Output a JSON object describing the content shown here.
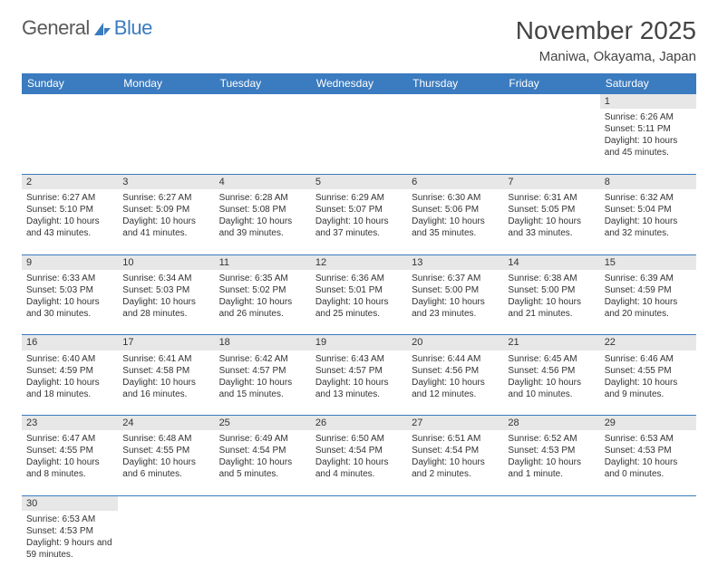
{
  "brand": {
    "part1": "General",
    "part2": "Blue",
    "logo_color": "#3b7bbf"
  },
  "title": "November 2025",
  "location": "Maniwa, Okayama, Japan",
  "colors": {
    "header_bg": "#3b7bbf",
    "header_text": "#ffffff",
    "daynum_bg": "#e7e7e7",
    "border": "#3b7bbf",
    "text": "#333333"
  },
  "weekdays": [
    "Sunday",
    "Monday",
    "Tuesday",
    "Wednesday",
    "Thursday",
    "Friday",
    "Saturday"
  ],
  "weeks": [
    [
      null,
      null,
      null,
      null,
      null,
      null,
      {
        "n": "1",
        "sr": "6:26 AM",
        "ss": "5:11 PM",
        "dl": "10 hours and 45 minutes."
      }
    ],
    [
      {
        "n": "2",
        "sr": "6:27 AM",
        "ss": "5:10 PM",
        "dl": "10 hours and 43 minutes."
      },
      {
        "n": "3",
        "sr": "6:27 AM",
        "ss": "5:09 PM",
        "dl": "10 hours and 41 minutes."
      },
      {
        "n": "4",
        "sr": "6:28 AM",
        "ss": "5:08 PM",
        "dl": "10 hours and 39 minutes."
      },
      {
        "n": "5",
        "sr": "6:29 AM",
        "ss": "5:07 PM",
        "dl": "10 hours and 37 minutes."
      },
      {
        "n": "6",
        "sr": "6:30 AM",
        "ss": "5:06 PM",
        "dl": "10 hours and 35 minutes."
      },
      {
        "n": "7",
        "sr": "6:31 AM",
        "ss": "5:05 PM",
        "dl": "10 hours and 33 minutes."
      },
      {
        "n": "8",
        "sr": "6:32 AM",
        "ss": "5:04 PM",
        "dl": "10 hours and 32 minutes."
      }
    ],
    [
      {
        "n": "9",
        "sr": "6:33 AM",
        "ss": "5:03 PM",
        "dl": "10 hours and 30 minutes."
      },
      {
        "n": "10",
        "sr": "6:34 AM",
        "ss": "5:03 PM",
        "dl": "10 hours and 28 minutes."
      },
      {
        "n": "11",
        "sr": "6:35 AM",
        "ss": "5:02 PM",
        "dl": "10 hours and 26 minutes."
      },
      {
        "n": "12",
        "sr": "6:36 AM",
        "ss": "5:01 PM",
        "dl": "10 hours and 25 minutes."
      },
      {
        "n": "13",
        "sr": "6:37 AM",
        "ss": "5:00 PM",
        "dl": "10 hours and 23 minutes."
      },
      {
        "n": "14",
        "sr": "6:38 AM",
        "ss": "5:00 PM",
        "dl": "10 hours and 21 minutes."
      },
      {
        "n": "15",
        "sr": "6:39 AM",
        "ss": "4:59 PM",
        "dl": "10 hours and 20 minutes."
      }
    ],
    [
      {
        "n": "16",
        "sr": "6:40 AM",
        "ss": "4:59 PM",
        "dl": "10 hours and 18 minutes."
      },
      {
        "n": "17",
        "sr": "6:41 AM",
        "ss": "4:58 PM",
        "dl": "10 hours and 16 minutes."
      },
      {
        "n": "18",
        "sr": "6:42 AM",
        "ss": "4:57 PM",
        "dl": "10 hours and 15 minutes."
      },
      {
        "n": "19",
        "sr": "6:43 AM",
        "ss": "4:57 PM",
        "dl": "10 hours and 13 minutes."
      },
      {
        "n": "20",
        "sr": "6:44 AM",
        "ss": "4:56 PM",
        "dl": "10 hours and 12 minutes."
      },
      {
        "n": "21",
        "sr": "6:45 AM",
        "ss": "4:56 PM",
        "dl": "10 hours and 10 minutes."
      },
      {
        "n": "22",
        "sr": "6:46 AM",
        "ss": "4:55 PM",
        "dl": "10 hours and 9 minutes."
      }
    ],
    [
      {
        "n": "23",
        "sr": "6:47 AM",
        "ss": "4:55 PM",
        "dl": "10 hours and 8 minutes."
      },
      {
        "n": "24",
        "sr": "6:48 AM",
        "ss": "4:55 PM",
        "dl": "10 hours and 6 minutes."
      },
      {
        "n": "25",
        "sr": "6:49 AM",
        "ss": "4:54 PM",
        "dl": "10 hours and 5 minutes."
      },
      {
        "n": "26",
        "sr": "6:50 AM",
        "ss": "4:54 PM",
        "dl": "10 hours and 4 minutes."
      },
      {
        "n": "27",
        "sr": "6:51 AM",
        "ss": "4:54 PM",
        "dl": "10 hours and 2 minutes."
      },
      {
        "n": "28",
        "sr": "6:52 AM",
        "ss": "4:53 PM",
        "dl": "10 hours and 1 minute."
      },
      {
        "n": "29",
        "sr": "6:53 AM",
        "ss": "4:53 PM",
        "dl": "10 hours and 0 minutes."
      }
    ],
    [
      {
        "n": "30",
        "sr": "6:53 AM",
        "ss": "4:53 PM",
        "dl": "9 hours and 59 minutes."
      },
      null,
      null,
      null,
      null,
      null,
      null
    ]
  ],
  "labels": {
    "sunrise": "Sunrise:",
    "sunset": "Sunset:",
    "daylight": "Daylight:"
  }
}
